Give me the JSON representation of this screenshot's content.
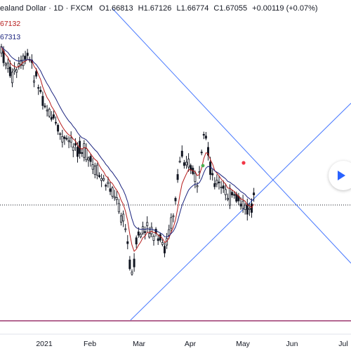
{
  "header": {
    "symbol": "ealand Dollar · 1D · FXCM",
    "o_label": "O",
    "o_value": "1.66813",
    "h_label": "H",
    "h_value": "1.67126",
    "l_label": "L",
    "l_value": "1.66774",
    "c_label": "C",
    "c_value": "1.67055",
    "change": "+0.00119 (+0.07%)"
  },
  "indicators": {
    "ma_fast": "67132",
    "ma_slow": "67313"
  },
  "x_axis": {
    "labels": [
      "2021",
      "Feb",
      "Mar",
      "Apr",
      "May",
      "Jun",
      "Jul"
    ]
  },
  "colors": {
    "candle": "#131722",
    "ma_fast": "#b71c1c",
    "ma_slow": "#1a237e",
    "trendline": "#2962ff",
    "horizontal_line": "#880e4f",
    "marker_red": "#f23645",
    "marker_green": "#4caf50",
    "accent": "#2962ff"
  },
  "controls": {
    "scroll_button_icon": "play-icon"
  }
}
